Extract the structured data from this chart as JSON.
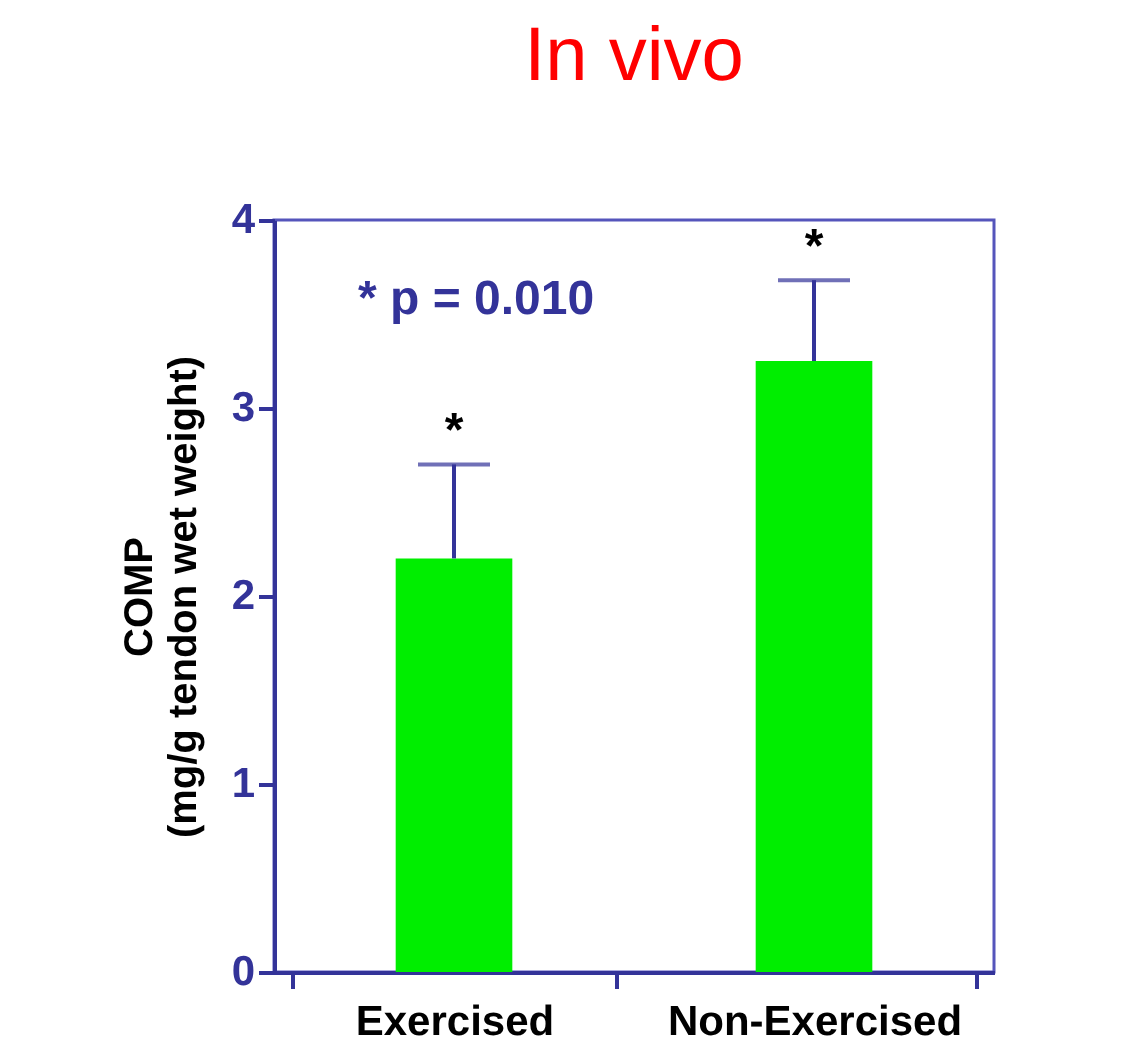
{
  "chart_data": {
    "type": "bar",
    "title": "In vivo",
    "ylabel": "COMP\n(mg/g tendon wet weight)",
    "categories": [
      "Exercised",
      "Non-Exercised"
    ],
    "values": [
      2.2,
      3.25
    ],
    "color": "#00ee00",
    "errors": [
      [
        2.2,
        2.7
      ],
      [
        3.25,
        3.68
      ]
    ],
    "ylim": [
      0,
      4
    ],
    "yticks": [
      0,
      1,
      2,
      3,
      4
    ],
    "grid": false,
    "annotations": [
      {
        "text": "*",
        "x": "Exercised",
        "y": 2.7
      },
      {
        "text": "*",
        "x": "Non-Exercised",
        "y": 3.68
      },
      "* p = 0.010"
    ]
  }
}
